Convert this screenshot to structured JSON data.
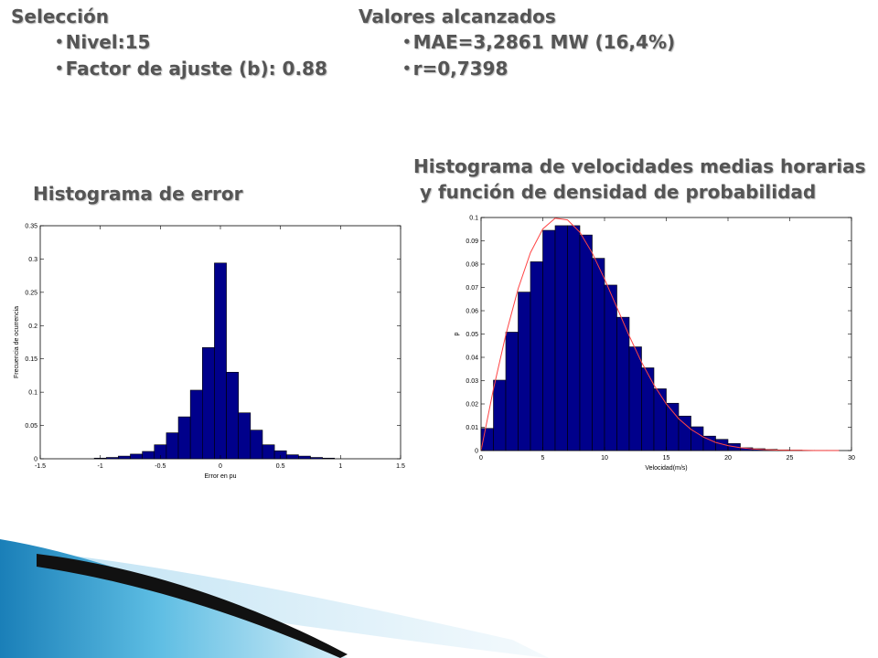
{
  "left_panel": {
    "heading": "Selección",
    "items": [
      "Nivel:15",
      "Factor de ajuste (b): 0.88"
    ]
  },
  "right_panel": {
    "heading": "Valores alcanzados",
    "items": [
      "MAE=3,2861 MW (16,4%)",
      "r=0,7398"
    ]
  },
  "error_chart": {
    "title": "Histograma de error"
  },
  "speed_chart": {
    "title_line1": "Histograma de velocidades medias horarias",
    "title_line2": " y función de densidad de probabilidad"
  },
  "colors": {
    "bar_fill": "#00008b",
    "curve": "#ff4444",
    "heading": "#555555"
  },
  "chart_data": [
    {
      "type": "bar",
      "title": "Histograma de error",
      "xlabel": "Error en pu",
      "ylabel": "Frecuencia de ocurrencia",
      "xlim": [
        -1.5,
        1.5
      ],
      "ylim": [
        0,
        0.35
      ],
      "xticks": [
        -1.5,
        -1,
        -0.5,
        0,
        0.5,
        1,
        1.5
      ],
      "xtick_labels": [
        "-1.5",
        "-1",
        "-0.5",
        "0",
        "0.5",
        "1",
        "1.5"
      ],
      "yticks": [
        0,
        0.05,
        0.1,
        0.15,
        0.2,
        0.25,
        0.3,
        0.35
      ],
      "ytick_labels": [
        "0",
        "0.05",
        "0.1",
        "0.15",
        "0.2",
        "0.25",
        "0.3",
        "0.35"
      ],
      "bar_width": 0.1,
      "x": [
        -1.0,
        -0.9,
        -0.8,
        -0.7,
        -0.6,
        -0.5,
        -0.4,
        -0.3,
        -0.2,
        -0.1,
        0.0,
        0.1,
        0.2,
        0.3,
        0.4,
        0.5,
        0.6,
        0.7,
        0.8,
        0.9
      ],
      "values": [
        0.001,
        0.002,
        0.004,
        0.007,
        0.011,
        0.021,
        0.039,
        0.063,
        0.103,
        0.167,
        0.294,
        0.13,
        0.069,
        0.043,
        0.021,
        0.012,
        0.006,
        0.004,
        0.002,
        0.001
      ],
      "grid": false
    },
    {
      "type": "bar",
      "title": "Histograma de velocidades medias horarias y función de densidad de probabilidad",
      "xlabel": "Velocidad(m/s)",
      "ylabel": "p",
      "xlim": [
        0,
        30
      ],
      "ylim": [
        0,
        0.1
      ],
      "xticks": [
        0,
        5,
        10,
        15,
        20,
        25,
        30
      ],
      "xtick_labels": [
        "0",
        "5",
        "10",
        "15",
        "20",
        "25",
        "30"
      ],
      "yticks": [
        0,
        0.01,
        0.02,
        0.03,
        0.04,
        0.05,
        0.06,
        0.07,
        0.08,
        0.09,
        0.1
      ],
      "ytick_labels": [
        "0",
        "0.01",
        "0.02",
        "0.03",
        "0.04",
        "0.05",
        "0.06",
        "0.07",
        "0.08",
        "0.09",
        "0.1"
      ],
      "bar_width": 1,
      "x": [
        0.5,
        1.5,
        2.5,
        3.5,
        4.5,
        5.5,
        6.5,
        7.5,
        8.5,
        9.5,
        10.5,
        11.5,
        12.5,
        13.5,
        14.5,
        15.5,
        16.5,
        17.5,
        18.5,
        19.5,
        20.5,
        21.5,
        22.5,
        23.5,
        24.5,
        25.5,
        26.5,
        27.5,
        28.5
      ],
      "values": [
        0.0095,
        0.0302,
        0.0508,
        0.068,
        0.081,
        0.0945,
        0.0965,
        0.0965,
        0.0925,
        0.0825,
        0.071,
        0.0572,
        0.0445,
        0.0355,
        0.0265,
        0.0203,
        0.0148,
        0.0102,
        0.0062,
        0.0048,
        0.003,
        0.0012,
        0.0008,
        0.0005,
        0.0003,
        0.0002,
        0.0001,
        0.0001,
        0.0001
      ],
      "curve": {
        "name": "función de densidad de probabilidad",
        "x": [
          0,
          1,
          2,
          3,
          4,
          5,
          6,
          7,
          8,
          9,
          10,
          11,
          12,
          13,
          14,
          15,
          16,
          17,
          18,
          19,
          20,
          21,
          22,
          23,
          24,
          25,
          26,
          27,
          28,
          29
        ],
        "y": [
          0,
          0.0263,
          0.0496,
          0.0694,
          0.0849,
          0.0951,
          0.0997,
          0.099,
          0.0937,
          0.0848,
          0.0736,
          0.0614,
          0.0492,
          0.0379,
          0.0281,
          0.02,
          0.0137,
          0.0091,
          0.0058,
          0.0035,
          0.0021,
          0.0012,
          0.0007,
          0.0004,
          0.0002,
          0.0001,
          0.0001,
          0,
          0,
          0
        ]
      },
      "grid": false
    }
  ]
}
